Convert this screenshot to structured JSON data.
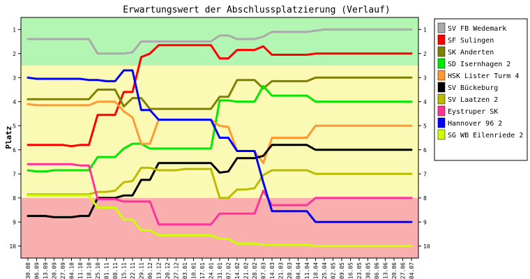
{
  "chart_data": {
    "type": "line",
    "title": "Erwartungswert der Abschlussplatzierung (Verlauf)",
    "ylabel": "Platz",
    "xlabel": "",
    "ylim": [
      0.5,
      10.5
    ],
    "y_inverted": true,
    "y_ticks": [
      "1",
      "2",
      "3",
      "4",
      "5",
      "6",
      "7",
      "8",
      "9",
      "10"
    ],
    "grid": false,
    "legend_position": "right",
    "background_zones": [
      {
        "from": 0.5,
        "to": 2.5,
        "color": "#b3f5b3"
      },
      {
        "from": 2.5,
        "to": 8.0,
        "color": "#fafab5"
      },
      {
        "from": 8.0,
        "to": 10.5,
        "color": "#faafaf"
      }
    ],
    "categories": [
      "30.08",
      "06.09",
      "13.09",
      "20.09",
      "27.09",
      "04.10",
      "11.10",
      "18.10",
      "25.10",
      "01.11",
      "08.11",
      "15.11",
      "22.11",
      "29.11",
      "06.12",
      "13.12",
      "20.12",
      "27.12",
      "03.01",
      "10.01",
      "17.01",
      "24.01",
      "31.01",
      "07.02",
      "14.02",
      "21.02",
      "28.02",
      "07.03",
      "14.03",
      "21.03",
      "28.03",
      "04.04",
      "11.04",
      "18.04",
      "25.04",
      "02.05",
      "09.05",
      "16.05",
      "23.05",
      "30.05",
      "06.06",
      "13.06",
      "20.06",
      "27.06",
      "04.07"
    ],
    "series": [
      {
        "name": "SV FB Wedemark",
        "color": "#aaaaaa",
        "values": [
          1.4,
          1.4,
          1.4,
          1.4,
          1.4,
          1.4,
          1.4,
          1.4,
          2.0,
          2.0,
          2.0,
          2.0,
          1.95,
          1.5,
          1.5,
          1.5,
          1.5,
          1.5,
          1.5,
          1.5,
          1.5,
          1.5,
          1.25,
          1.25,
          1.4,
          1.4,
          1.4,
          1.3,
          1.1,
          1.1,
          1.1,
          1.1,
          1.1,
          1.05,
          1.0,
          1.0,
          1.0,
          1.0,
          1.0,
          1.0,
          1.0,
          1.0,
          1.0,
          1.0,
          1.0
        ]
      },
      {
        "name": "SF Sulingen",
        "color": "#ff0000",
        "values": [
          5.8,
          5.8,
          5.8,
          5.8,
          5.8,
          5.85,
          5.8,
          5.8,
          4.55,
          4.55,
          4.55,
          3.6,
          3.6,
          2.15,
          2.0,
          1.65,
          1.65,
          1.65,
          1.65,
          1.65,
          1.65,
          1.65,
          2.2,
          2.2,
          1.85,
          1.85,
          1.85,
          1.7,
          2.05,
          2.05,
          2.05,
          2.05,
          2.05,
          2.0,
          2.0,
          2.0,
          2.0,
          2.0,
          2.0,
          2.0,
          2.0,
          2.0,
          2.0,
          2.0,
          2.0
        ]
      },
      {
        "name": "SK Anderten",
        "color": "#808000",
        "values": [
          3.9,
          3.9,
          3.9,
          3.9,
          3.9,
          3.9,
          3.9,
          3.9,
          3.5,
          3.5,
          3.5,
          4.2,
          3.85,
          3.85,
          4.3,
          4.3,
          4.3,
          4.3,
          4.3,
          4.3,
          4.3,
          4.3,
          3.8,
          3.8,
          3.1,
          3.1,
          3.1,
          3.45,
          3.15,
          3.15,
          3.15,
          3.15,
          3.15,
          3.0,
          3.0,
          3.0,
          3.0,
          3.0,
          3.0,
          3.0,
          3.0,
          3.0,
          3.0,
          3.0,
          3.0
        ]
      },
      {
        "name": "SD Isernhagen 2",
        "color": "#00e800",
        "values": [
          6.85,
          6.9,
          6.9,
          6.85,
          6.85,
          6.85,
          6.85,
          6.85,
          6.3,
          6.3,
          6.3,
          5.95,
          5.75,
          5.75,
          5.95,
          5.95,
          5.95,
          5.95,
          5.95,
          5.95,
          5.95,
          5.95,
          3.95,
          3.95,
          4.0,
          4.0,
          4.0,
          3.35,
          3.75,
          3.75,
          3.75,
          3.75,
          3.75,
          4.0,
          4.0,
          4.0,
          4.0,
          4.0,
          4.0,
          4.0,
          4.0,
          4.0,
          4.0,
          4.0,
          4.0
        ]
      },
      {
        "name": "HSK Lister Turm 4",
        "color": "#ff9933",
        "values": [
          4.1,
          4.15,
          4.15,
          4.15,
          4.15,
          4.15,
          4.15,
          4.15,
          4.0,
          4.0,
          4.0,
          4.4,
          4.65,
          5.75,
          5.75,
          4.75,
          4.75,
          4.75,
          4.75,
          4.75,
          4.75,
          4.75,
          5.0,
          5.05,
          6.05,
          6.05,
          6.05,
          6.55,
          5.5,
          5.5,
          5.5,
          5.5,
          5.5,
          5.0,
          5.0,
          5.0,
          5.0,
          5.0,
          5.0,
          5.0,
          5.0,
          5.0,
          5.0,
          5.0,
          5.0
        ]
      },
      {
        "name": "SV Bückeburg",
        "color": "#000000",
        "values": [
          8.75,
          8.75,
          8.75,
          8.8,
          8.8,
          8.8,
          8.75,
          8.75,
          8.0,
          8.0,
          8.0,
          7.9,
          7.9,
          7.25,
          7.25,
          6.55,
          6.55,
          6.55,
          6.55,
          6.55,
          6.55,
          6.55,
          6.95,
          6.9,
          6.35,
          6.35,
          6.35,
          6.25,
          5.8,
          5.8,
          5.8,
          5.8,
          5.8,
          6.0,
          6.0,
          6.0,
          6.0,
          6.0,
          6.0,
          6.0,
          6.0,
          6.0,
          6.0,
          6.0,
          6.0
        ]
      },
      {
        "name": "SV Laatzen 2",
        "color": "#bbbb00",
        "values": [
          7.85,
          7.85,
          7.85,
          7.85,
          7.85,
          7.85,
          7.85,
          7.85,
          7.75,
          7.75,
          7.7,
          7.35,
          7.3,
          6.75,
          6.75,
          6.85,
          6.85,
          6.85,
          6.8,
          6.8,
          6.8,
          6.8,
          8.0,
          8.0,
          7.65,
          7.65,
          7.6,
          7.05,
          6.85,
          6.85,
          6.85,
          6.85,
          6.85,
          7.0,
          7.0,
          7.0,
          7.0,
          7.0,
          7.0,
          7.0,
          7.0,
          7.0,
          7.0,
          7.0,
          7.0
        ]
      },
      {
        "name": "Eystruper SK",
        "color": "#ff3399",
        "values": [
          6.6,
          6.6,
          6.6,
          6.6,
          6.6,
          6.6,
          6.65,
          6.65,
          8.05,
          8.05,
          8.05,
          8.15,
          8.15,
          8.15,
          8.15,
          9.1,
          9.1,
          9.1,
          9.1,
          9.1,
          9.1,
          9.1,
          8.65,
          8.65,
          8.65,
          8.65,
          8.65,
          7.7,
          8.3,
          8.3,
          8.3,
          8.3,
          8.3,
          8.0,
          8.0,
          8.0,
          8.0,
          8.0,
          8.0,
          8.0,
          8.0,
          8.0,
          8.0,
          8.0,
          8.0
        ]
      },
      {
        "name": "Hannover 96 2",
        "color": "#0000ff",
        "values": [
          3.0,
          3.05,
          3.05,
          3.05,
          3.05,
          3.05,
          3.05,
          3.1,
          3.1,
          3.15,
          3.15,
          2.7,
          2.7,
          4.35,
          4.35,
          4.75,
          4.75,
          4.75,
          4.75,
          4.75,
          4.75,
          4.75,
          5.5,
          5.5,
          6.05,
          6.05,
          6.05,
          7.35,
          8.55,
          8.55,
          8.55,
          8.55,
          8.55,
          9.0,
          9.0,
          9.0,
          9.0,
          9.0,
          9.0,
          9.0,
          9.0,
          9.0,
          9.0,
          9.0,
          9.0
        ]
      },
      {
        "name": "SG WB Eilenriede 2",
        "color": "#ccff00",
        "values": [
          7.9,
          7.9,
          7.9,
          7.9,
          7.9,
          7.9,
          7.9,
          7.9,
          8.4,
          8.4,
          8.4,
          8.9,
          8.9,
          9.35,
          9.35,
          9.55,
          9.55,
          9.55,
          9.55,
          9.55,
          9.55,
          9.55,
          9.7,
          9.7,
          9.9,
          9.9,
          9.9,
          9.95,
          9.95,
          9.95,
          9.95,
          9.95,
          9.95,
          10.0,
          10.0,
          10.0,
          10.0,
          10.0,
          10.0,
          10.0,
          10.0,
          10.0,
          10.0,
          10.0,
          10.0
        ]
      }
    ]
  }
}
